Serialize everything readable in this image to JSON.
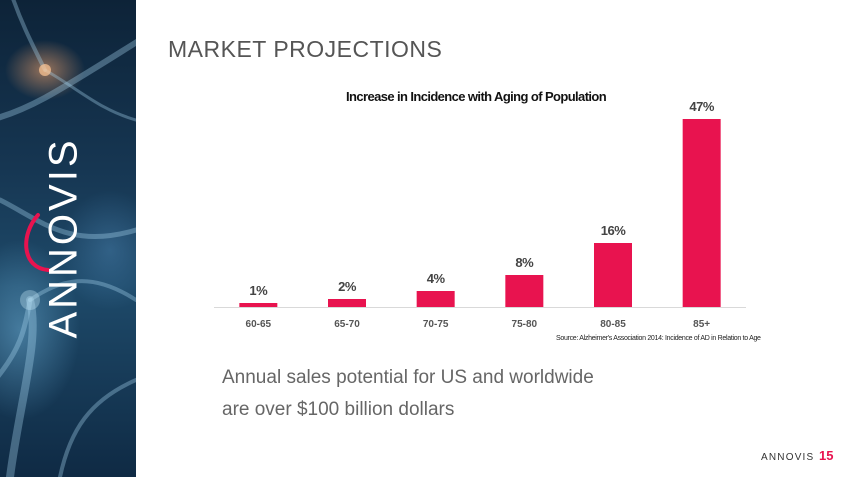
{
  "slide": {
    "title": "MARKET PROJECTIONS",
    "tagline_line1": "Annual sales potential for US and worldwide",
    "tagline_line2": "are over $100 billion dollars",
    "logo_text": "ANNOVIS",
    "footer_brand": "ANNOVIS",
    "page_number": "15",
    "source": "Source: Alzheimer's Association 2014: Incidence of AD in Relation to Age"
  },
  "colors": {
    "bar": "#e8134f",
    "accent": "#e8134f"
  },
  "chart_data": {
    "type": "bar",
    "title": "Increase in Incidence with Aging of Population",
    "xlabel": "",
    "ylabel": "",
    "categories": [
      "60-65",
      "65-70",
      "70-75",
      "75-80",
      "80-85",
      "85+"
    ],
    "values": [
      1,
      2,
      4,
      8,
      16,
      47
    ],
    "value_labels": [
      "1%",
      "2%",
      "4%",
      "8%",
      "16%",
      "47%"
    ],
    "ylim": [
      0,
      50
    ],
    "grid": false,
    "legend": "none"
  }
}
